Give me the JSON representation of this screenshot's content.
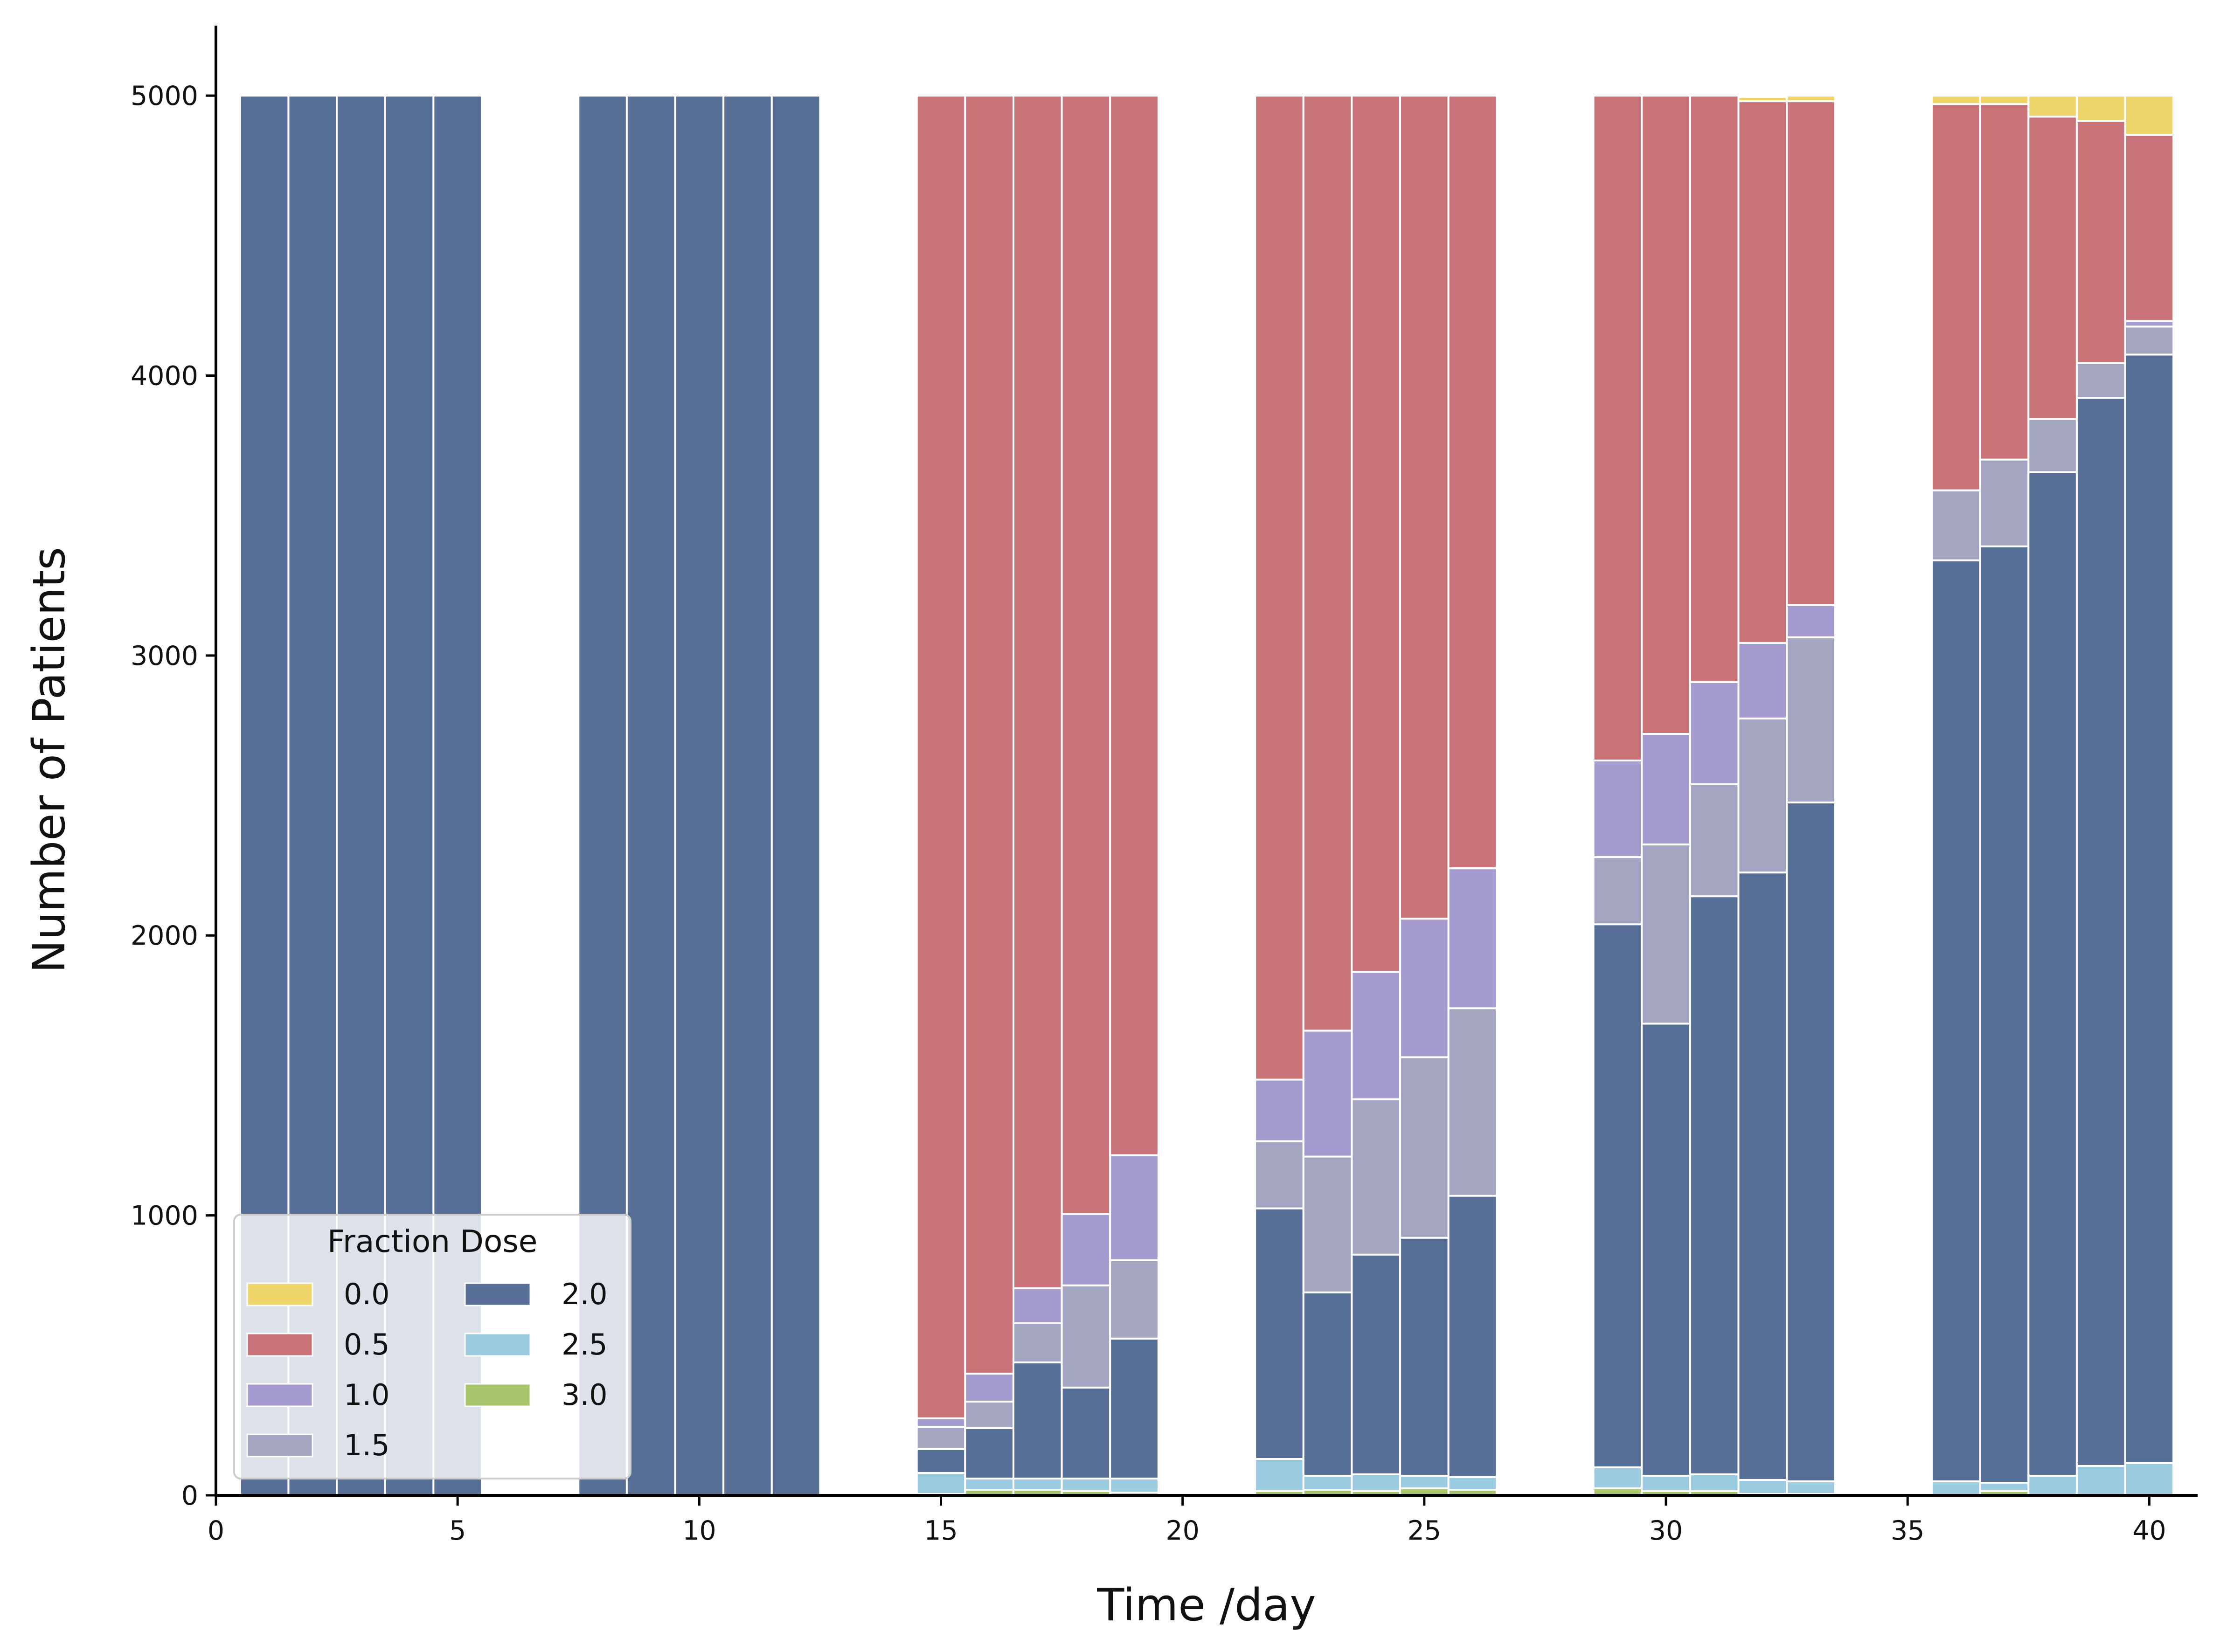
{
  "chart_data": {
    "type": "bar",
    "stacked": true,
    "xlabel": "Time /day",
    "ylabel": "Number of Patients",
    "xlim": [
      0,
      41
    ],
    "ylim": [
      0,
      5250
    ],
    "xticks": [
      0,
      5,
      10,
      15,
      20,
      25,
      30,
      35,
      40
    ],
    "yticks": [
      0,
      1000,
      2000,
      3000,
      4000,
      5000
    ],
    "grid": false,
    "legend": {
      "title": "Fraction Dose",
      "position": "lower-left",
      "columns": 2
    },
    "x": [
      1,
      2,
      3,
      4,
      5,
      8,
      9,
      10,
      11,
      12,
      15,
      16,
      17,
      18,
      19,
      22,
      23,
      24,
      25,
      26,
      29,
      30,
      31,
      32,
      33,
      36,
      37,
      38,
      39,
      40
    ],
    "series": [
      {
        "name": "3.0",
        "color": "#A8C66C",
        "values": [
          0,
          0,
          0,
          0,
          0,
          0,
          0,
          0,
          0,
          0,
          5,
          20,
          20,
          15,
          10,
          15,
          20,
          15,
          25,
          20,
          25,
          15,
          15,
          5,
          5,
          0,
          15,
          0,
          0,
          0
        ]
      },
      {
        "name": "2.5",
        "color": "#9ACBE0",
        "values": [
          0,
          0,
          0,
          0,
          0,
          0,
          0,
          0,
          0,
          0,
          75,
          40,
          40,
          45,
          50,
          115,
          50,
          60,
          45,
          45,
          75,
          55,
          60,
          50,
          45,
          50,
          30,
          70,
          105,
          115
        ]
      },
      {
        "name": "2.0",
        "color": "#576F96",
        "values": [
          5000,
          5000,
          5000,
          5000,
          5000,
          5000,
          5000,
          5000,
          5000,
          5000,
          85,
          180,
          415,
          325,
          500,
          895,
          655,
          785,
          850,
          1005,
          1940,
          1615,
          2065,
          2170,
          2425,
          3290,
          3345,
          3585,
          3815,
          3960
        ]
      },
      {
        "name": "1.5",
        "color": "#A3A4BF",
        "values": [
          0,
          0,
          0,
          0,
          0,
          0,
          0,
          0,
          0,
          0,
          80,
          95,
          140,
          365,
          280,
          240,
          485,
          555,
          645,
          670,
          240,
          640,
          400,
          550,
          590,
          250,
          310,
          190,
          125,
          100
        ]
      },
      {
        "name": "1.0",
        "color": "#A59BCF",
        "values": [
          0,
          0,
          0,
          0,
          0,
          0,
          0,
          0,
          0,
          0,
          30,
          100,
          125,
          255,
          375,
          220,
          450,
          455,
          495,
          500,
          345,
          395,
          365,
          270,
          115,
          0,
          0,
          0,
          0,
          20
        ]
      },
      {
        "name": "0.5",
        "color": "#C97378",
        "values": [
          0,
          0,
          0,
          0,
          0,
          0,
          0,
          0,
          0,
          0,
          4725,
          4565,
          4260,
          3995,
          3785,
          3515,
          3340,
          3130,
          2940,
          2760,
          2375,
          2280,
          2095,
          1935,
          1800,
          1380,
          1270,
          1080,
          865,
          665
        ]
      },
      {
        "name": "0.0",
        "color": "#F0D56B",
        "values": [
          0,
          0,
          0,
          0,
          0,
          0,
          0,
          0,
          0,
          0,
          0,
          0,
          0,
          0,
          0,
          0,
          0,
          0,
          0,
          0,
          0,
          0,
          0,
          15,
          20,
          30,
          30,
          75,
          90,
          140
        ]
      }
    ]
  }
}
